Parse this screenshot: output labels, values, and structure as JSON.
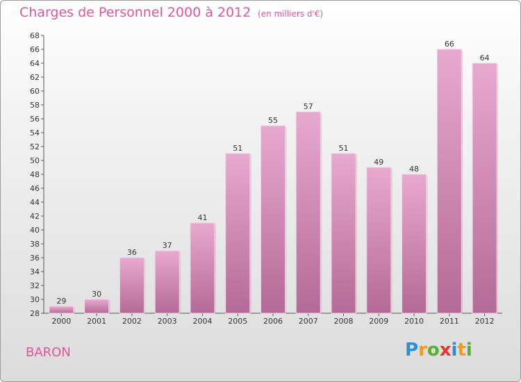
{
  "title": "Charges de Personnel 2000 à 2012",
  "subtitle": "(en milliers d'€)",
  "commune": "BARON",
  "logo": {
    "letters": [
      "P",
      "r",
      "o",
      "x",
      "i",
      "t",
      "i"
    ],
    "colors": [
      "#2b8fd6",
      "#f29a1a",
      "#58b031",
      "#e8342b",
      "#2b8fd6",
      "#f29a1a",
      "#58b031"
    ]
  },
  "colors": {
    "bar": "#e3a3c9",
    "bar_dark": "#b46a96",
    "text_accent": "#e0569b"
  },
  "chart_data": {
    "type": "bar",
    "categories": [
      "2000",
      "2001",
      "2002",
      "2003",
      "2004",
      "2005",
      "2006",
      "2007",
      "2008",
      "2009",
      "2010",
      "2011",
      "2012"
    ],
    "values": [
      29,
      30,
      36,
      37,
      41,
      51,
      55,
      57,
      51,
      49,
      48,
      66,
      64
    ],
    "ylim": [
      28,
      68
    ],
    "yticks": [
      28,
      30,
      32,
      34,
      36,
      38,
      40,
      42,
      44,
      46,
      48,
      50,
      52,
      54,
      56,
      58,
      60,
      62,
      64,
      66,
      68
    ],
    "grid": false,
    "legend": "none"
  }
}
